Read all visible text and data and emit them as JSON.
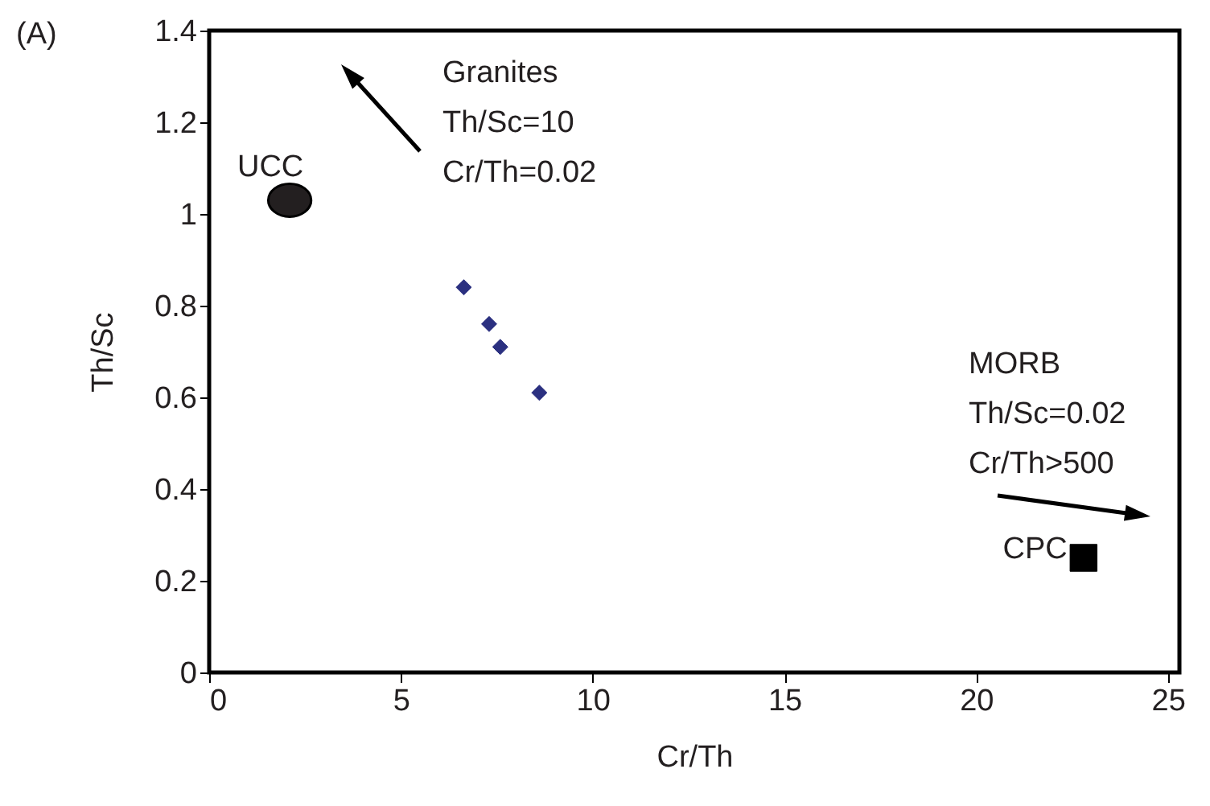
{
  "chart_data": {
    "type": "scatter",
    "title": "(A)",
    "xlabel": "Cr/Th",
    "ylabel": "Th/Sc",
    "xlim": [
      0,
      25.3
    ],
    "ylim": [
      0,
      1.4
    ],
    "xticks": [
      0,
      5,
      10,
      15,
      20,
      25
    ],
    "yticks": [
      0,
      0.2,
      0.4,
      0.6,
      0.8,
      1,
      1.2,
      1.4
    ],
    "grid": false,
    "series": [
      {
        "color": "#2b3080",
        "marker": "diamond",
        "x": [
          6.64,
          7.3,
          7.59,
          8.61
        ],
        "values": [
          0.84,
          0.76,
          0.71,
          0.61
        ]
      },
      {
        "name": "UCC",
        "color": "#231f20",
        "marker": "circle",
        "x": [
          2.1
        ],
        "values": [
          1.03
        ]
      },
      {
        "name": "CPC",
        "color": "#000000",
        "marker": "square",
        "x": [
          22.8
        ],
        "values": [
          0.25
        ]
      }
    ],
    "annotations": [
      "Granites\nTh/Sc=10\nCr/Th=0.02",
      "MORB\nTh/Sc=0.02\nCr/Th>500"
    ]
  }
}
